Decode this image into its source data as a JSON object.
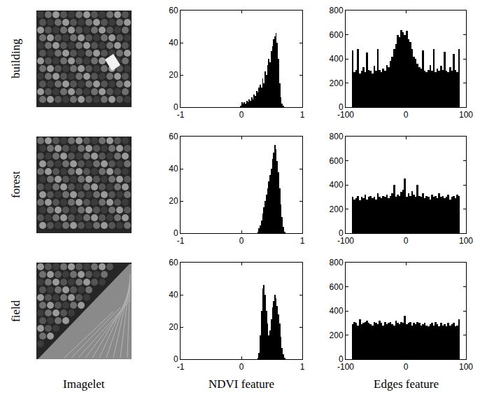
{
  "row_labels": [
    "building",
    "forest",
    "field"
  ],
  "column_labels": [
    "Imagelet",
    "NDVI feature",
    "Edges feature"
  ],
  "chart_data": [
    {
      "type": "histogram",
      "color": "#000000",
      "grid": false,
      "bins": [
        -0.02,
        0,
        0.02,
        0.04,
        0.06,
        0.08,
        0.1,
        0.12,
        0.14,
        0.16,
        0.18,
        0.2,
        0.22,
        0.24,
        0.26,
        0.28,
        0.3,
        0.32,
        0.34,
        0.36,
        0.38,
        0.4,
        0.42,
        0.44,
        0.46,
        0.48,
        0.5,
        0.52,
        0.54,
        0.56,
        0.58,
        0.6,
        0.62,
        0.64,
        0.66,
        0.68,
        0.7,
        0.72
      ],
      "values": [
        1,
        3,
        2,
        3,
        2,
        4,
        3,
        5,
        4,
        6,
        5,
        8,
        7,
        10,
        9,
        12,
        14,
        12,
        18,
        15,
        22,
        20,
        26,
        30,
        28,
        35,
        38,
        42,
        44,
        46,
        40,
        30,
        15,
        6,
        2,
        1,
        0
      ],
      "xlim": [
        -1,
        1
      ],
      "xticks": [
        -1,
        0,
        1
      ],
      "ylim": [
        0,
        60
      ],
      "yticks": [
        0,
        20,
        40,
        60
      ]
    },
    {
      "type": "histogram",
      "color": "#000000",
      "grid": false,
      "bins": [
        -90,
        -87,
        -84,
        -81,
        -78,
        -75,
        -72,
        -69,
        -66,
        -63,
        -60,
        -57,
        -54,
        -51,
        -48,
        -45,
        -42,
        -39,
        -36,
        -33,
        -30,
        -27,
        -24,
        -21,
        -18,
        -15,
        -12,
        -9,
        -6,
        -3,
        0,
        3,
        6,
        9,
        12,
        15,
        18,
        21,
        24,
        27,
        30,
        33,
        36,
        39,
        42,
        45,
        48,
        51,
        54,
        57,
        60,
        63,
        66,
        69,
        72,
        75,
        78,
        81,
        84,
        87,
        90
      ],
      "values": [
        470,
        290,
        310,
        480,
        280,
        300,
        330,
        290,
        450,
        310,
        300,
        280,
        340,
        300,
        480,
        310,
        290,
        320,
        300,
        350,
        330,
        380,
        420,
        480,
        520,
        600,
        580,
        640,
        620,
        600,
        630,
        560,
        540,
        480,
        420,
        400,
        360,
        330,
        320,
        470,
        300,
        290,
        310,
        350,
        300,
        480,
        290,
        320,
        300,
        340,
        310,
        460,
        300,
        290,
        330,
        300,
        440,
        310,
        290,
        480
      ],
      "xlim": [
        -100,
        100
      ],
      "xticks": [
        -100,
        0,
        100
      ],
      "ylim": [
        0,
        800
      ],
      "yticks": [
        0,
        200,
        400,
        600,
        800
      ]
    },
    {
      "type": "histogram",
      "color": "#000000",
      "grid": false,
      "bins": [
        0.26,
        0.28,
        0.3,
        0.32,
        0.34,
        0.36,
        0.38,
        0.4,
        0.42,
        0.44,
        0.46,
        0.48,
        0.5,
        0.52,
        0.54,
        0.56,
        0.58,
        0.6,
        0.62,
        0.64,
        0.66,
        0.68,
        0.7,
        0.72
      ],
      "values": [
        1,
        3,
        5,
        8,
        12,
        16,
        20,
        24,
        28,
        32,
        36,
        40,
        46,
        50,
        55,
        52,
        45,
        38,
        28,
        18,
        10,
        4,
        1
      ],
      "xlim": [
        -1,
        1
      ],
      "xticks": [
        -1,
        0,
        1
      ],
      "ylim": [
        0,
        60
      ],
      "yticks": [
        0,
        20,
        40,
        60
      ]
    },
    {
      "type": "histogram",
      "color": "#000000",
      "grid": false,
      "bins": [
        -90,
        -87,
        -84,
        -81,
        -78,
        -75,
        -72,
        -69,
        -66,
        -63,
        -60,
        -57,
        -54,
        -51,
        -48,
        -45,
        -42,
        -39,
        -36,
        -33,
        -30,
        -27,
        -24,
        -21,
        -18,
        -15,
        -12,
        -9,
        -6,
        -3,
        0,
        3,
        6,
        9,
        12,
        15,
        18,
        21,
        24,
        27,
        30,
        33,
        36,
        39,
        42,
        45,
        48,
        51,
        54,
        57,
        60,
        63,
        66,
        69,
        72,
        75,
        78,
        81,
        84,
        87,
        90
      ],
      "values": [
        300,
        280,
        290,
        310,
        270,
        300,
        290,
        320,
        280,
        300,
        310,
        290,
        300,
        280,
        330,
        300,
        290,
        310,
        300,
        320,
        290,
        310,
        330,
        400,
        300,
        320,
        310,
        340,
        360,
        450,
        300,
        330,
        310,
        350,
        320,
        300,
        400,
        310,
        300,
        330,
        290,
        310,
        300,
        280,
        320,
        300,
        310,
        290,
        330,
        300,
        310,
        290,
        300,
        320,
        280,
        300,
        310,
        290,
        320,
        310
      ],
      "xlim": [
        -100,
        100
      ],
      "xticks": [
        -100,
        0,
        100
      ],
      "ylim": [
        0,
        800
      ],
      "yticks": [
        0,
        200,
        400,
        600,
        800
      ]
    },
    {
      "type": "histogram",
      "color": "#000000",
      "grid": false,
      "bins": [
        0.26,
        0.28,
        0.3,
        0.32,
        0.34,
        0.36,
        0.38,
        0.4,
        0.42,
        0.44,
        0.46,
        0.48,
        0.5,
        0.52,
        0.54,
        0.56,
        0.58,
        0.6,
        0.62,
        0.64,
        0.66,
        0.68,
        0.7,
        0.72
      ],
      "values": [
        1,
        4,
        15,
        30,
        44,
        46,
        40,
        30,
        22,
        15,
        18,
        25,
        32,
        36,
        40,
        38,
        33,
        28,
        22,
        14,
        7,
        3,
        1
      ],
      "xlim": [
        -1,
        1
      ],
      "xticks": [
        -1,
        0,
        1
      ],
      "ylim": [
        0,
        60
      ],
      "yticks": [
        0,
        20,
        40,
        60
      ]
    },
    {
      "type": "histogram",
      "color": "#000000",
      "grid": false,
      "bins": [
        -90,
        -87,
        -84,
        -81,
        -78,
        -75,
        -72,
        -69,
        -66,
        -63,
        -60,
        -57,
        -54,
        -51,
        -48,
        -45,
        -42,
        -39,
        -36,
        -33,
        -30,
        -27,
        -24,
        -21,
        -18,
        -15,
        -12,
        -9,
        -6,
        -3,
        0,
        3,
        6,
        9,
        12,
        15,
        18,
        21,
        24,
        27,
        30,
        33,
        36,
        39,
        42,
        45,
        48,
        51,
        54,
        57,
        60,
        63,
        66,
        69,
        72,
        75,
        78,
        81,
        84,
        87,
        90
      ],
      "values": [
        290,
        310,
        300,
        280,
        330,
        290,
        300,
        310,
        320,
        300,
        290,
        280,
        310,
        300,
        290,
        320,
        300,
        280,
        310,
        290,
        300,
        310,
        290,
        280,
        320,
        300,
        290,
        310,
        300,
        360,
        290,
        300,
        310,
        280,
        300,
        290,
        310,
        300,
        280,
        290,
        300,
        280,
        270,
        290,
        300,
        280,
        310,
        290,
        270,
        300,
        280,
        290,
        270,
        300,
        280,
        290,
        300,
        270,
        280,
        330
      ],
      "xlim": [
        -100,
        100
      ],
      "xticks": [
        -100,
        0,
        100
      ],
      "ylim": [
        0,
        800
      ],
      "yticks": [
        0,
        200,
        400,
        600,
        800
      ]
    }
  ]
}
